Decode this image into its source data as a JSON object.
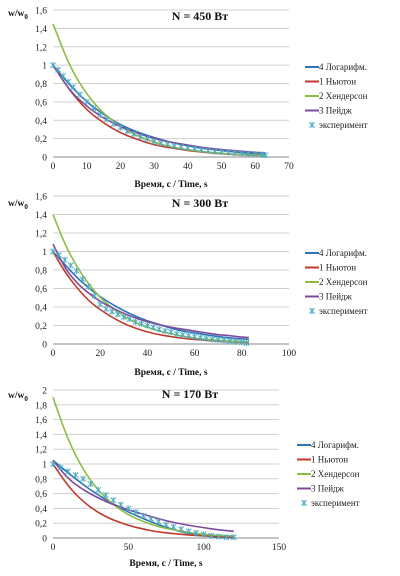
{
  "chart_data": [
    {
      "type": "line",
      "title": "N = 450 Вт",
      "ylabel": "w/w",
      "ylabel_sub": "0",
      "xlabel": "Время, с / Time, s",
      "xlim": [
        0,
        70
      ],
      "ylim": [
        0,
        1.6
      ],
      "xticks": [
        0,
        10,
        20,
        30,
        40,
        50,
        60,
        70
      ],
      "yticks": [
        "0",
        "0,2",
        "0,4",
        "0,6",
        "0,8",
        "1",
        "1,2",
        "1,4",
        "1,6"
      ],
      "grid": true,
      "legend_position": "right",
      "series": [
        {
          "name": "4 Логарифм.",
          "color": "#2e74b5",
          "x": [
            0,
            5,
            10,
            15,
            20,
            25,
            30,
            35,
            40,
            45,
            50,
            55,
            60,
            63
          ],
          "y": [
            1.0,
            0.78,
            0.6,
            0.46,
            0.35,
            0.27,
            0.21,
            0.16,
            0.12,
            0.09,
            0.07,
            0.05,
            0.035,
            0.03
          ]
        },
        {
          "name": "1 Ньютон",
          "color": "#c0392b",
          "x": [
            0,
            5,
            10,
            15,
            20,
            25,
            30,
            35,
            40,
            45,
            50,
            55,
            60,
            63
          ],
          "y": [
            1.0,
            0.72,
            0.51,
            0.37,
            0.26,
            0.19,
            0.13,
            0.1,
            0.07,
            0.05,
            0.035,
            0.025,
            0.018,
            0.014
          ]
        },
        {
          "name": "2 Хендерсон",
          "color": "#8fbc45",
          "x": [
            0,
            5,
            10,
            15,
            20,
            25,
            30,
            35,
            40,
            45,
            50,
            55,
            60,
            63
          ],
          "y": [
            1.45,
            0.98,
            0.68,
            0.47,
            0.33,
            0.23,
            0.16,
            0.11,
            0.08,
            0.055,
            0.04,
            0.028,
            0.02,
            0.016
          ]
        },
        {
          "name": "3 Пейдж",
          "color": "#7d4a9c",
          "x": [
            0,
            5,
            10,
            15,
            20,
            25,
            30,
            35,
            40,
            45,
            50,
            55,
            60,
            63
          ],
          "y": [
            1.0,
            0.72,
            0.55,
            0.42,
            0.33,
            0.26,
            0.2,
            0.16,
            0.13,
            0.1,
            0.08,
            0.065,
            0.05,
            0.045
          ]
        },
        {
          "name": "эксперимент",
          "color": "#4bacc6",
          "marker": "star",
          "x": [
            0,
            1.5,
            3,
            4.5,
            6,
            8,
            10,
            12,
            14,
            16,
            18,
            20,
            22,
            24,
            26,
            28,
            30,
            32,
            34,
            36,
            38,
            40,
            42,
            44,
            46,
            48,
            50,
            52,
            54,
            56,
            58,
            60,
            62,
            63
          ],
          "y": [
            1.0,
            0.95,
            0.88,
            0.82,
            0.76,
            0.68,
            0.6,
            0.53,
            0.46,
            0.41,
            0.36,
            0.32,
            0.28,
            0.25,
            0.22,
            0.2,
            0.17,
            0.15,
            0.14,
            0.12,
            0.11,
            0.1,
            0.09,
            0.08,
            0.07,
            0.06,
            0.055,
            0.05,
            0.045,
            0.04,
            0.035,
            0.03,
            0.025,
            0.02
          ]
        }
      ]
    },
    {
      "type": "line",
      "title": "N = 300 Вт",
      "ylabel": "w/w",
      "ylabel_sub": "0",
      "xlabel": "Время, с / Time, s",
      "xlim": [
        0,
        100
      ],
      "ylim": [
        0,
        1.6
      ],
      "xticks": [
        0,
        20,
        40,
        60,
        80,
        100
      ],
      "yticks": [
        "0",
        "0,2",
        "0,4",
        "0,6",
        "0,8",
        "1",
        "1,2",
        "1,4",
        "1,6"
      ],
      "grid": true,
      "legend_position": "right",
      "series": [
        {
          "name": "4 Логарифм.",
          "color": "#2e74b5",
          "x": [
            0,
            5,
            10,
            15,
            20,
            25,
            30,
            35,
            40,
            45,
            50,
            55,
            60,
            65,
            70,
            75,
            80,
            83
          ],
          "y": [
            1.0,
            0.86,
            0.72,
            0.61,
            0.51,
            0.43,
            0.36,
            0.3,
            0.25,
            0.21,
            0.17,
            0.14,
            0.12,
            0.1,
            0.08,
            0.065,
            0.055,
            0.05
          ]
        },
        {
          "name": "1 Ньютон",
          "color": "#c0392b",
          "x": [
            0,
            5,
            10,
            15,
            20,
            25,
            30,
            35,
            40,
            45,
            50,
            55,
            60,
            65,
            70,
            75,
            80,
            83
          ],
          "y": [
            1.0,
            0.78,
            0.61,
            0.47,
            0.37,
            0.29,
            0.22,
            0.17,
            0.13,
            0.1,
            0.08,
            0.06,
            0.05,
            0.04,
            0.03,
            0.025,
            0.02,
            0.015
          ]
        },
        {
          "name": "2 Хендерсон",
          "color": "#8fbc45",
          "x": [
            0,
            5,
            10,
            15,
            20,
            25,
            30,
            35,
            40,
            45,
            50,
            55,
            60,
            65,
            70,
            75,
            80,
            83
          ],
          "y": [
            1.4,
            1.08,
            0.84,
            0.65,
            0.5,
            0.39,
            0.3,
            0.23,
            0.18,
            0.14,
            0.11,
            0.085,
            0.065,
            0.05,
            0.04,
            0.03,
            0.025,
            0.02
          ]
        },
        {
          "name": "3 Пейдж",
          "color": "#7d4a9c",
          "x": [
            0,
            5,
            10,
            15,
            20,
            25,
            30,
            35,
            40,
            45,
            50,
            55,
            60,
            65,
            70,
            75,
            80,
            83
          ],
          "y": [
            1.08,
            0.82,
            0.66,
            0.55,
            0.46,
            0.39,
            0.33,
            0.28,
            0.24,
            0.21,
            0.18,
            0.16,
            0.14,
            0.12,
            0.1,
            0.09,
            0.075,
            0.07
          ]
        },
        {
          "name": "эксперимент",
          "color": "#4bacc6",
          "marker": "star",
          "x": [
            0,
            2.5,
            5,
            7.5,
            10,
            12.5,
            15,
            17.5,
            20,
            22.5,
            25,
            27.5,
            30,
            32.5,
            35,
            37.5,
            40,
            42.5,
            45,
            47.5,
            50,
            52.5,
            55,
            57.5,
            60,
            62.5,
            65,
            67.5,
            70,
            72.5,
            75,
            77.5,
            80,
            82
          ],
          "y": [
            1.0,
            0.96,
            0.91,
            0.85,
            0.79,
            0.7,
            0.62,
            0.52,
            0.43,
            0.38,
            0.35,
            0.32,
            0.29,
            0.27,
            0.24,
            0.22,
            0.2,
            0.18,
            0.16,
            0.14,
            0.13,
            0.11,
            0.1,
            0.09,
            0.08,
            0.07,
            0.06,
            0.05,
            0.045,
            0.04,
            0.03,
            0.025,
            0.02,
            0.01
          ]
        }
      ]
    },
    {
      "type": "line",
      "title": "N = 170 Вт",
      "ylabel": "w/w",
      "ylabel_sub": "0",
      "xlabel": "Время, с / Time, s",
      "xlim": [
        0,
        150
      ],
      "ylim": [
        0,
        2
      ],
      "xticks": [
        0,
        50,
        100,
        150
      ],
      "yticks": [
        "0",
        "0,2",
        "0,4",
        "0,6",
        "0,8",
        "1",
        "1,2",
        "1,4",
        "1,6",
        "1,8",
        "2"
      ],
      "grid": true,
      "legend_position": "right",
      "series": [
        {
          "name": "4 Логарифм.",
          "color": "#2e74b5",
          "x": [
            0,
            10,
            20,
            30,
            40,
            50,
            60,
            70,
            80,
            90,
            100,
            110,
            120
          ],
          "y": [
            1.05,
            0.88,
            0.72,
            0.58,
            0.46,
            0.35,
            0.26,
            0.18,
            0.11,
            0.06,
            0.03,
            0.01,
            0.0
          ]
        },
        {
          "name": "1 Ньютон",
          "color": "#c0392b",
          "x": [
            0,
            10,
            20,
            30,
            40,
            50,
            60,
            70,
            80,
            90,
            100,
            110,
            120
          ],
          "y": [
            1.0,
            0.7,
            0.49,
            0.34,
            0.24,
            0.17,
            0.12,
            0.08,
            0.06,
            0.04,
            0.03,
            0.02,
            0.015
          ]
        },
        {
          "name": "2 Хендерсон",
          "color": "#8fbc45",
          "x": [
            0,
            10,
            20,
            30,
            40,
            50,
            60,
            70,
            80,
            90,
            100,
            110,
            120
          ],
          "y": [
            1.9,
            1.32,
            0.92,
            0.64,
            0.45,
            0.31,
            0.22,
            0.15,
            0.11,
            0.075,
            0.05,
            0.035,
            0.025
          ]
        },
        {
          "name": "3 Пейдж",
          "color": "#7d4a9c",
          "x": [
            0,
            10,
            20,
            30,
            40,
            50,
            60,
            70,
            80,
            90,
            100,
            110,
            120
          ],
          "y": [
            1.05,
            0.8,
            0.65,
            0.54,
            0.45,
            0.38,
            0.32,
            0.26,
            0.21,
            0.17,
            0.14,
            0.11,
            0.09
          ]
        },
        {
          "name": "эксперимент",
          "color": "#4bacc6",
          "marker": "star",
          "x": [
            0,
            5,
            10,
            15,
            20,
            25,
            30,
            35,
            40,
            45,
            50,
            55,
            60,
            65,
            70,
            75,
            80,
            85,
            90,
            95,
            100,
            105,
            110,
            115,
            120
          ],
          "y": [
            1.0,
            0.95,
            0.9,
            0.85,
            0.8,
            0.73,
            0.65,
            0.58,
            0.51,
            0.45,
            0.4,
            0.35,
            0.3,
            0.26,
            0.22,
            0.18,
            0.15,
            0.12,
            0.09,
            0.07,
            0.05,
            0.03,
            0.02,
            0.01,
            0.01
          ]
        }
      ]
    }
  ]
}
